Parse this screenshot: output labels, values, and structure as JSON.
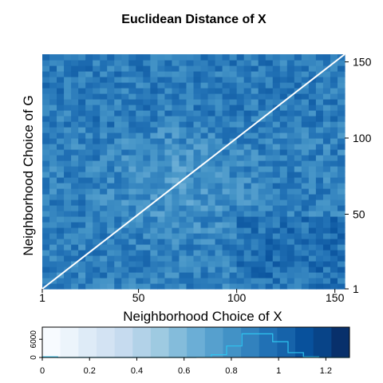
{
  "chart_data": [
    {
      "type": "heatmap",
      "title": "Euclidean Distance of X",
      "xlabel": "Neighborhood Choice of X",
      "ylabel": "Neighborhood Choice of G",
      "x_ticks": [
        "1",
        "50",
        "100",
        "150"
      ],
      "y_ticks": [
        "1",
        "50",
        "100",
        "150"
      ],
      "xlim": [
        1,
        155
      ],
      "ylim": [
        1,
        155
      ],
      "y_axis_position": "right",
      "diagonal": "white line from (1,1) to (155,155)",
      "value_range": [
        0,
        1.3
      ],
      "typical_value_range": [
        0.7,
        1.1
      ],
      "center_region_lighter": true,
      "lower_right_region_darker": true,
      "colormap": "Blues"
    },
    {
      "type": "histogram",
      "x_ticks": [
        "0",
        "0.2",
        "0.4",
        "0.6",
        "0.8",
        "1",
        "1.2"
      ],
      "y_ticks": [
        "0",
        "6000"
      ],
      "xlim": [
        0,
        1.3
      ],
      "bin_edges": [
        0.0,
        0.065,
        0.13,
        0.195,
        0.26,
        0.325,
        0.39,
        0.455,
        0.52,
        0.585,
        0.65,
        0.715,
        0.78,
        0.845,
        0.91,
        0.975,
        1.04,
        1.105,
        1.17,
        1.235,
        1.3
      ],
      "counts": [
        200,
        0,
        0,
        0,
        0,
        0,
        0,
        0,
        0,
        0,
        50,
        900,
        3800,
        7800,
        7800,
        5200,
        1600,
        200,
        0,
        0
      ],
      "ymax": 10000,
      "line_color": "#2ec4ef",
      "legend_colors": [
        "#f7fbff",
        "#ecf4fb",
        "#deebf7",
        "#d3e3f3",
        "#c6dbef",
        "#b2d2e8",
        "#9ecae1",
        "#84bcdb",
        "#6baed6",
        "#56a0ce",
        "#4292c6",
        "#3282be",
        "#2171b5",
        "#1663aa",
        "#08519c",
        "#084488",
        "#08306b"
      ]
    }
  ]
}
